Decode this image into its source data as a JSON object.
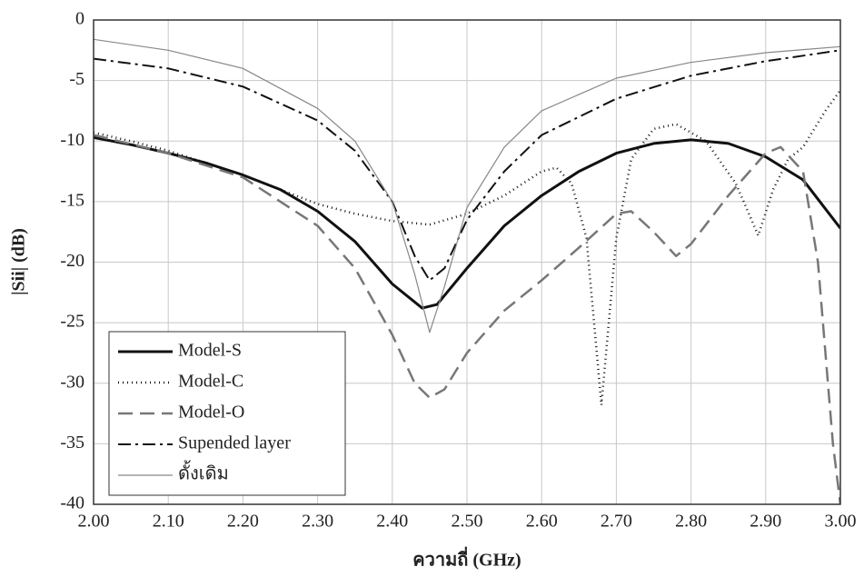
{
  "chart_data": {
    "type": "line",
    "x_label": "ความถี่ (GHz)",
    "y_label": "|Sii| (dB)",
    "xlim": [
      2,
      3
    ],
    "xticks": [
      {
        "value": 2,
        "label": "2.00"
      },
      {
        "value": 2.1,
        "label": "2.10"
      },
      {
        "value": 2.2,
        "label": "2.20"
      },
      {
        "value": 2.3,
        "label": "2.30"
      },
      {
        "value": 2.4,
        "label": "2.40"
      },
      {
        "value": 2.5,
        "label": "2.50"
      },
      {
        "value": 2.6,
        "label": "2.60"
      },
      {
        "value": 2.7,
        "label": "2.70"
      },
      {
        "value": 2.8,
        "label": "2.80"
      },
      {
        "value": 2.9,
        "label": "2.90"
      },
      {
        "value": 3,
        "label": "3.00"
      }
    ],
    "ylim": [
      -40,
      0
    ],
    "yticks": [
      -40,
      -35,
      -30,
      -25,
      -20,
      -15,
      -10,
      -5,
      0
    ],
    "grid": true,
    "legend": "lower-left",
    "series": [
      {
        "name": "Model-S",
        "color": "#111111",
        "width": 3,
        "dash": "none",
        "x": [
          2.0,
          2.05,
          2.1,
          2.15,
          2.2,
          2.25,
          2.3,
          2.35,
          2.4,
          2.44,
          2.46,
          2.5,
          2.55,
          2.6,
          2.65,
          2.7,
          2.75,
          2.8,
          2.85,
          2.9,
          2.95,
          3.0
        ],
        "values": [
          -9.7,
          -10.3,
          -11,
          -11.8,
          -12.8,
          -14,
          -15.8,
          -18.3,
          -21.8,
          -23.8,
          -23.5,
          -20.5,
          -17,
          -14.5,
          -12.5,
          -11,
          -10.2,
          -9.9,
          -10.2,
          -11.3,
          -13.2,
          -17.2
        ]
      },
      {
        "name": "Model-C",
        "color": "#111111",
        "width": 2.5,
        "dash": "1 4",
        "x": [
          2.0,
          2.05,
          2.1,
          2.15,
          2.2,
          2.25,
          2.3,
          2.35,
          2.4,
          2.45,
          2.5,
          2.55,
          2.6,
          2.62,
          2.64,
          2.66,
          2.68,
          2.7,
          2.72,
          2.75,
          2.78,
          2.82,
          2.86,
          2.89,
          2.91,
          2.93,
          2.95,
          2.98,
          3.0
        ],
        "values": [
          -9.3,
          -10,
          -10.8,
          -11.8,
          -12.8,
          -14,
          -15.2,
          -16,
          -16.6,
          -16.9,
          -16,
          -14.5,
          -12.5,
          -12.2,
          -13.5,
          -18,
          -31.8,
          -18,
          -11.5,
          -9,
          -8.6,
          -10,
          -13.5,
          -17.8,
          -14,
          -11.5,
          -10.5,
          -7.5,
          -5.8
        ]
      },
      {
        "name": "Model-O",
        "color": "#777777",
        "width": 2.5,
        "dash": "16 8",
        "x": [
          2.0,
          2.1,
          2.2,
          2.3,
          2.35,
          2.4,
          2.43,
          2.45,
          2.47,
          2.5,
          2.55,
          2.6,
          2.65,
          2.7,
          2.72,
          2.75,
          2.78,
          2.8,
          2.85,
          2.9,
          2.92,
          2.95,
          2.97,
          2.99,
          3.0
        ],
        "values": [
          -9.5,
          -11,
          -13,
          -17,
          -20.5,
          -26,
          -30,
          -31.2,
          -30.5,
          -27.5,
          -24,
          -21.5,
          -18.8,
          -16,
          -15.8,
          -17.5,
          -19.5,
          -18.5,
          -14.5,
          -11,
          -10.5,
          -12.5,
          -20,
          -35,
          -40
        ]
      },
      {
        "name": "Supended layer",
        "color": "#111111",
        "width": 2,
        "dash": "14 5 3 5",
        "x": [
          2.0,
          2.1,
          2.2,
          2.3,
          2.35,
          2.4,
          2.43,
          2.45,
          2.47,
          2.5,
          2.55,
          2.6,
          2.7,
          2.8,
          2.9,
          3.0
        ],
        "values": [
          -3.2,
          -4,
          -5.5,
          -8.3,
          -10.8,
          -15,
          -19.5,
          -21.5,
          -20.5,
          -16.5,
          -12.5,
          -9.5,
          -6.5,
          -4.6,
          -3.4,
          -2.5
        ]
      },
      {
        "name": "ดั้งเดิม",
        "color": "#888888",
        "width": 1.2,
        "dash": "none",
        "x": [
          2.0,
          2.1,
          2.2,
          2.3,
          2.35,
          2.4,
          2.43,
          2.45,
          2.47,
          2.5,
          2.55,
          2.6,
          2.7,
          2.8,
          2.9,
          3.0
        ],
        "values": [
          -1.6,
          -2.5,
          -4,
          -7.3,
          -10,
          -15,
          -21,
          -25.8,
          -22,
          -15.5,
          -10.5,
          -7.5,
          -4.8,
          -3.5,
          -2.7,
          -2.2
        ]
      }
    ]
  }
}
